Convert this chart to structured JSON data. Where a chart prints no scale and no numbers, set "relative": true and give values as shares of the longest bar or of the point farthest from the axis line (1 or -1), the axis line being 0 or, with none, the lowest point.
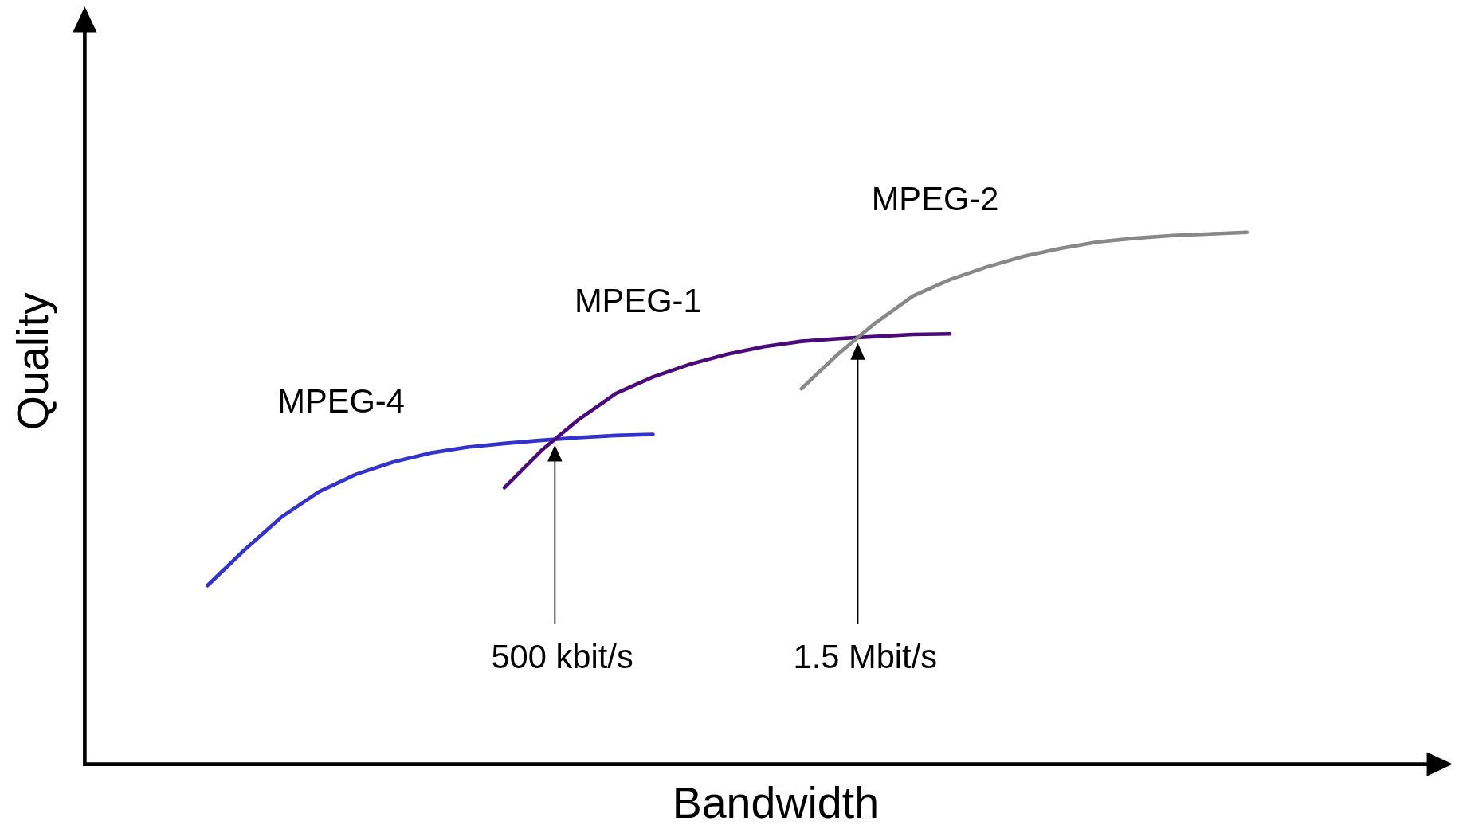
{
  "chart_data": {
    "type": "line",
    "relative": true,
    "xlabel": "Bandwidth",
    "ylabel": "Quality",
    "marker": "none",
    "line_style": "solid",
    "categories": [
      null,
      null,
      null,
      null,
      null,
      null,
      null,
      null,
      null,
      null,
      null,
      null,
      null,
      null,
      null,
      null,
      null,
      null,
      null,
      null,
      null,
      null,
      null,
      null,
      null,
      null,
      null,
      null,
      null
    ],
    "series": [
      {
        "name": "MPEG-4",
        "color": "#3333cc",
        "values": [
          0.336,
          0.403,
          0.465,
          0.512,
          0.545,
          0.568,
          0.585,
          0.596,
          0.603,
          0.609,
          0.614,
          0.618,
          0.62,
          null,
          null,
          null,
          null,
          null,
          null,
          null,
          null,
          null,
          null,
          null,
          null,
          null,
          null,
          null,
          null
        ]
      },
      {
        "name": "MPEG-1",
        "color": "#4b0a7a",
        "values": [
          null,
          null,
          null,
          null,
          null,
          null,
          null,
          null,
          0.52,
          0.59,
          0.648,
          0.697,
          0.728,
          0.752,
          0.771,
          0.785,
          0.795,
          0.8,
          0.804,
          0.808,
          0.809,
          null,
          null,
          null,
          null,
          null,
          null,
          null,
          null
        ]
      },
      {
        "name": "MPEG-2",
        "color": "#888888",
        "values": [
          null,
          null,
          null,
          null,
          null,
          null,
          null,
          null,
          null,
          null,
          null,
          null,
          null,
          null,
          null,
          null,
          0.706,
          0.772,
          0.83,
          0.88,
          0.911,
          0.935,
          0.955,
          0.97,
          0.982,
          0.989,
          0.994,
          0.997,
          1
        ]
      }
    ],
    "annotations": [
      "500 kbit/s",
      "1.5 Mbit/s"
    ]
  }
}
